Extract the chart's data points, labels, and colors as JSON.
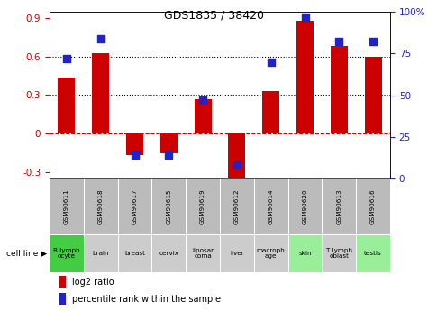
{
  "title": "GDS1835 / 38420",
  "samples": [
    "GSM90611",
    "GSM90618",
    "GSM90617",
    "GSM90615",
    "GSM90619",
    "GSM90612",
    "GSM90614",
    "GSM90620",
    "GSM90613",
    "GSM90616"
  ],
  "cell_lines": [
    "B lymph\nocyte",
    "brain",
    "breast",
    "cervix",
    "liposar\ncoma",
    "liver",
    "macroph\nage",
    "skin",
    "T lymph\noblast",
    "testis"
  ],
  "log2_ratio": [
    0.44,
    0.63,
    -0.17,
    -0.15,
    0.27,
    -0.34,
    0.33,
    0.88,
    0.68,
    0.6
  ],
  "pct_rank": [
    72,
    84,
    14,
    14,
    47,
    8,
    70,
    97,
    82,
    82
  ],
  "bar_color": "#cc0000",
  "dot_color": "#2222cc",
  "ylim_left": [
    -0.35,
    0.95
  ],
  "ylim_right": [
    0,
    100
  ],
  "yticks_left": [
    -0.3,
    0.0,
    0.3,
    0.6,
    0.9
  ],
  "yticks_right": [
    0,
    25,
    50,
    75,
    100
  ],
  "hlines": [
    0.3,
    0.6
  ],
  "zero_line_color": "#cc0000",
  "cell_line_bg_light": "#99ee99",
  "cell_line_bg_dark": "#44cc44",
  "cell_line_bg_grey": "#cccccc",
  "gsm_bg": "#bbbbbb",
  "bar_width": 0.5,
  "dot_size": 40,
  "cell_colors_idx": [
    2,
    0,
    0,
    0,
    0,
    0,
    0,
    1,
    0,
    1
  ]
}
